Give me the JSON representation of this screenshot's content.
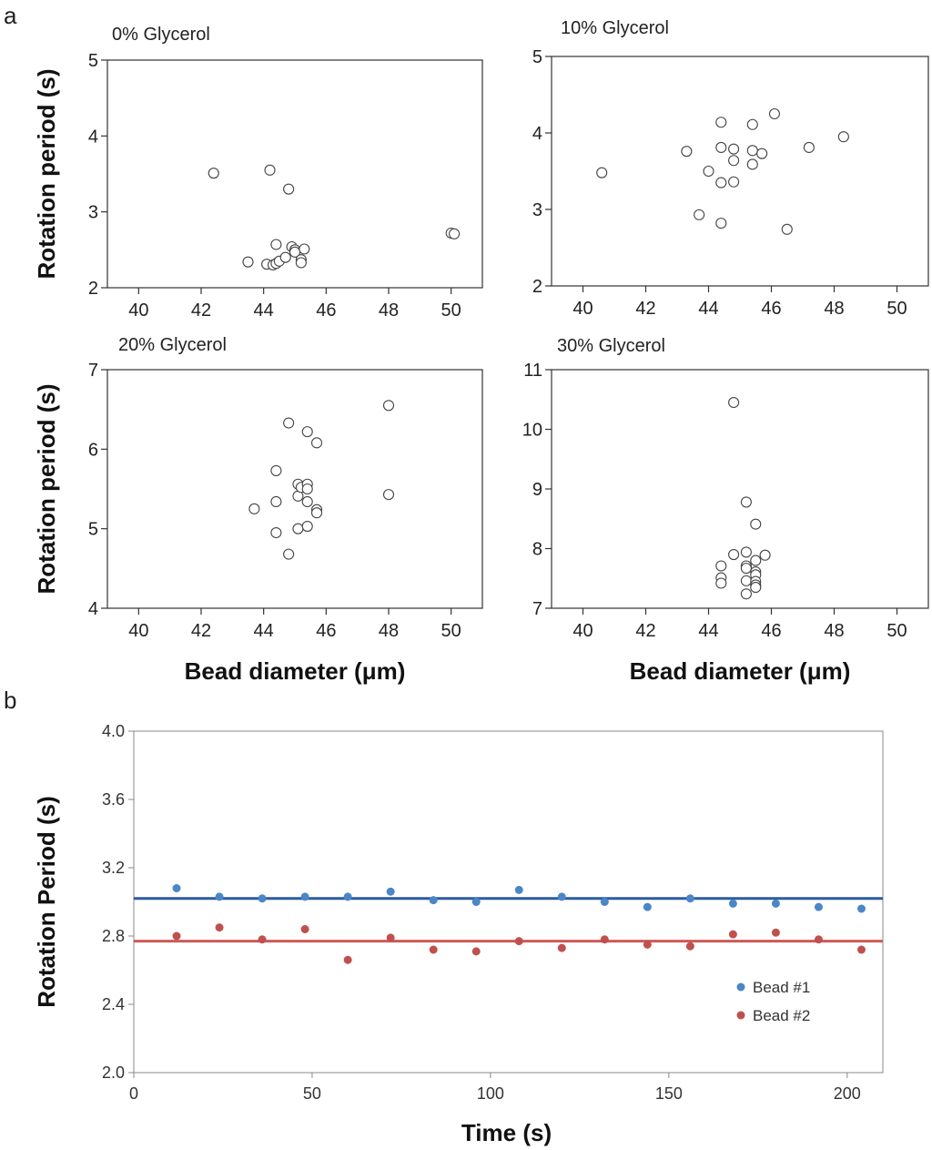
{
  "figure": {
    "panel_a_label": "a",
    "panel_b_label": "b"
  },
  "chart_data": [
    {
      "type": "scatter",
      "title": "0% Glycerol",
      "xlabel": "",
      "ylabel": "Rotation period (s)",
      "xlim": [
        39,
        51
      ],
      "ylim": [
        2,
        5
      ],
      "xticks": [
        40,
        42,
        44,
        46,
        48,
        50
      ],
      "yticks": [
        2,
        3,
        4,
        5
      ],
      "x": [
        42.4,
        44.2,
        44.8,
        43.5,
        44.1,
        44.3,
        44.4,
        44.5,
        44.4,
        44.7,
        44.9,
        45.0,
        45.0,
        45.2,
        45.2,
        45.3,
        50.0,
        50.1
      ],
      "y": [
        3.51,
        3.55,
        3.3,
        2.34,
        2.31,
        2.3,
        2.32,
        2.35,
        2.57,
        2.4,
        2.54,
        2.5,
        2.47,
        2.37,
        2.33,
        2.51,
        2.72,
        2.71
      ]
    },
    {
      "type": "scatter",
      "title": "10% Glycerol",
      "xlabel": "",
      "ylabel": "",
      "xlim": [
        39,
        51
      ],
      "ylim": [
        2,
        5
      ],
      "xticks": [
        40,
        42,
        44,
        46,
        48,
        50
      ],
      "yticks": [
        2,
        3,
        4,
        5
      ],
      "x": [
        40.6,
        43.3,
        43.7,
        44.0,
        44.4,
        44.4,
        44.4,
        44.4,
        44.8,
        44.8,
        44.8,
        45.4,
        45.4,
        45.4,
        45.7,
        46.1,
        46.5,
        47.2,
        48.3
      ],
      "y": [
        3.48,
        3.76,
        2.93,
        3.5,
        4.14,
        3.81,
        3.35,
        2.82,
        3.79,
        3.64,
        3.36,
        4.11,
        3.77,
        3.59,
        3.73,
        4.25,
        2.74,
        3.81,
        3.95
      ]
    },
    {
      "type": "scatter",
      "title": "20% Glycerol",
      "xlabel": "Bead diameter (μm)",
      "ylabel": "Rotation period (s)",
      "xlim": [
        39,
        51
      ],
      "ylim": [
        4,
        7
      ],
      "xticks": [
        40,
        42,
        44,
        46,
        48,
        50
      ],
      "yticks": [
        4,
        5,
        6,
        7
      ],
      "x": [
        43.7,
        44.4,
        44.4,
        44.4,
        44.8,
        44.8,
        45.1,
        45.1,
        45.1,
        45.2,
        45.4,
        45.4,
        45.4,
        45.4,
        45.4,
        45.7,
        45.7,
        45.7,
        48.0,
        48.0
      ],
      "y": [
        5.25,
        5.73,
        5.34,
        4.95,
        6.33,
        4.68,
        5.56,
        5.41,
        5.0,
        5.52,
        6.22,
        5.56,
        5.5,
        5.34,
        5.03,
        6.08,
        5.24,
        5.2,
        6.55,
        5.43
      ]
    },
    {
      "type": "scatter",
      "title": "30% Glycerol",
      "xlabel": "Bead diameter (μm)",
      "ylabel": "",
      "xlim": [
        39,
        51
      ],
      "ylim": [
        7,
        11
      ],
      "xticks": [
        40,
        42,
        44,
        46,
        48,
        50
      ],
      "yticks": [
        7,
        8,
        9,
        10,
        11
      ],
      "x": [
        44.8,
        45.2,
        45.5,
        44.4,
        44.4,
        44.4,
        44.8,
        45.2,
        45.2,
        45.2,
        45.2,
        45.2,
        45.5,
        45.5,
        45.5,
        45.5,
        45.5,
        45.5,
        45.8
      ],
      "y": [
        10.45,
        8.78,
        8.41,
        7.71,
        7.51,
        7.42,
        7.9,
        7.94,
        7.71,
        7.67,
        7.46,
        7.24,
        7.8,
        7.61,
        7.56,
        7.45,
        7.39,
        7.35,
        7.89
      ]
    },
    {
      "type": "scatter",
      "title": "",
      "xlabel": "Time (s)",
      "ylabel": "Rotation Period (s)",
      "xlim": [
        0,
        210
      ],
      "ylim": [
        2.0,
        4.0
      ],
      "xticks": [
        "0",
        "50",
        "100",
        "150",
        "200"
      ],
      "yticks": [
        "2.0",
        "2.4",
        "2.8",
        "3.2",
        "3.6",
        "4.0"
      ],
      "legend": "lower-right",
      "series": [
        {
          "name": "Bead #1",
          "color": "#4a86c8",
          "x": [
            12,
            24,
            36,
            48,
            60,
            72,
            84,
            96,
            108,
            120,
            132,
            144,
            156,
            168,
            180,
            192,
            204
          ],
          "y": [
            3.08,
            3.03,
            3.02,
            3.03,
            3.03,
            3.06,
            3.01,
            3.0,
            3.07,
            3.03,
            3.0,
            2.97,
            3.02,
            2.99,
            2.99,
            2.97,
            2.96
          ],
          "mean_line": 3.02,
          "line_color": "#2d5aa0"
        },
        {
          "name": "Bead #2",
          "color": "#c0504d",
          "x": [
            12,
            24,
            36,
            48,
            60,
            72,
            84,
            96,
            108,
            120,
            132,
            144,
            156,
            168,
            180,
            192,
            204
          ],
          "y": [
            2.8,
            2.85,
            2.78,
            2.84,
            2.66,
            2.79,
            2.72,
            2.71,
            2.77,
            2.73,
            2.78,
            2.75,
            2.74,
            2.81,
            2.82,
            2.78,
            2.72
          ],
          "mean_line": 2.77,
          "line_color": "#cd5a57"
        }
      ]
    }
  ]
}
